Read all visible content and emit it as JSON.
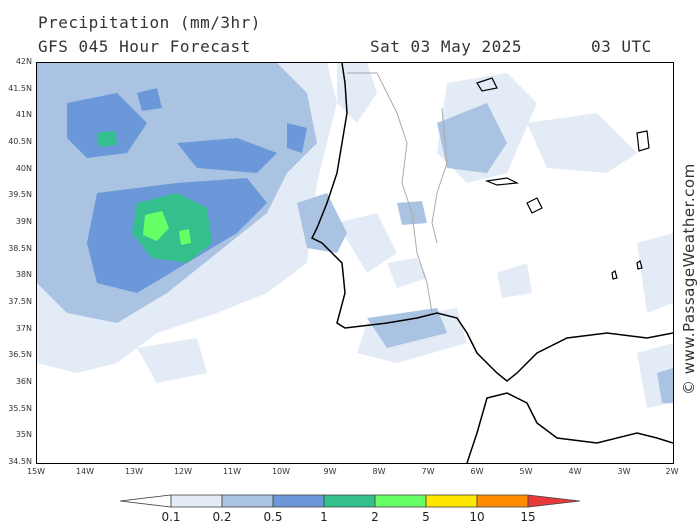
{
  "header": {
    "title": "Precipitation (mm/3hr)",
    "subtitle": "GFS 045 Hour Forecast",
    "valid_date": "Sat 03 May 2025",
    "valid_time": "03 UTC"
  },
  "watermark": "© www.PassageWeather.com",
  "axes": {
    "lat_labels": [
      "42N",
      "41.5N",
      "41N",
      "40.5N",
      "40N",
      "39.5N",
      "39N",
      "38.5N",
      "38N",
      "37.5N",
      "37N",
      "36.5N",
      "36N",
      "35.5N",
      "35N",
      "34.5N"
    ],
    "lon_labels": [
      "15W",
      "14W",
      "13W",
      "12W",
      "11W",
      "10W",
      "9W",
      "8W",
      "7W",
      "6W",
      "5W",
      "4W",
      "3W",
      "2W"
    ],
    "lat_range": [
      34.5,
      42
    ],
    "lon_range": [
      -15,
      -2
    ]
  },
  "legend": {
    "labels": [
      "0.1",
      "0.2",
      "0.5",
      "1",
      "2",
      "5",
      "10",
      "15"
    ],
    "colors": [
      "#ffffff",
      "#e3ebf6",
      "#aac3e3",
      "#6b98d8",
      "#33c08d",
      "#66ff66",
      "#ffe600",
      "#ff8c00",
      "#e83a3a"
    ]
  },
  "colors": {
    "ocean": "#ffffff",
    "coastline": "#000000",
    "border": "#aaaaaa"
  }
}
